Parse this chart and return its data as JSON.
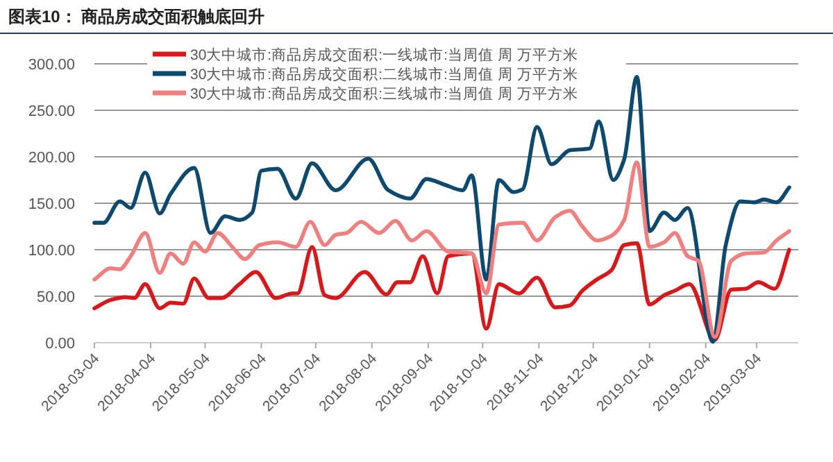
{
  "chart_data": {
    "type": "line",
    "title": "图表10：  商品房成交面积触底回升",
    "xlim": [
      "2018-03-04",
      "2019-03-27"
    ],
    "xticks": [
      "2018-03-04",
      "2018-04-04",
      "2018-05-04",
      "2018-06-04",
      "2018-07-04",
      "2018-08-04",
      "2018-09-04",
      "2018-10-04",
      "2018-11-04",
      "2018-12-04",
      "2019-01-04",
      "2019-02-04",
      "2019-03-04"
    ],
    "ylim": [
      0,
      300
    ],
    "yticks": [
      {
        "value": 0,
        "label": "0.00"
      },
      {
        "value": 50,
        "label": "50.00"
      },
      {
        "value": 100,
        "label": "100.00"
      },
      {
        "value": 150,
        "label": "150.00"
      },
      {
        "value": 200,
        "label": "200.00"
      },
      {
        "value": 250,
        "label": "250.00"
      },
      {
        "value": 300,
        "label": "300.00"
      }
    ],
    "grid": "y",
    "legend": "top",
    "marker": "none",
    "line_style": "solid",
    "series": [
      {
        "name": "30大中城市:商品房成交面积:一线城市:当周值 周  万平方米",
        "color": "#d7191c",
        "x": [
          "2018-03-04",
          "2018-03-13",
          "2018-03-21",
          "2018-03-26",
          "2018-04-01",
          "2018-04-09",
          "2018-04-15",
          "2018-04-22",
          "2018-04-28",
          "2018-05-06",
          "2018-05-13",
          "2018-05-23",
          "2018-06-01",
          "2018-06-12",
          "2018-06-21",
          "2018-06-24",
          "2018-07-02",
          "2018-07-09",
          "2018-07-15",
          "2018-07-31",
          "2018-08-12",
          "2018-08-18",
          "2018-08-25",
          "2018-09-01",
          "2018-09-09",
          "2018-09-15",
          "2018-09-28",
          "2018-10-06",
          "2018-10-13",
          "2018-10-24",
          "2018-11-03",
          "2018-11-13",
          "2018-11-21",
          "2018-11-28",
          "2018-12-06",
          "2018-12-14",
          "2018-12-21",
          "2018-12-28",
          "2019-01-04",
          "2019-01-12",
          "2019-01-18",
          "2019-01-26",
          "2019-02-09",
          "2019-02-18",
          "2019-02-26",
          "2019-03-05",
          "2019-03-14",
          "2019-03-22"
        ],
        "values": [
          37,
          46,
          49,
          48,
          63,
          37,
          43,
          42,
          69,
          48,
          48,
          63,
          76,
          48,
          53,
          53,
          103,
          51,
          48,
          76,
          52,
          65,
          65,
          93,
          53,
          93,
          96,
          15,
          63,
          53,
          70,
          38,
          40,
          56,
          68,
          78,
          105,
          107,
          41,
          51,
          56,
          63,
          3,
          57,
          58,
          65,
          58,
          100
        ]
      },
      {
        "name": "30大中城市:商品房成交面积:二线城市:当周值 周  万平方米",
        "color": "#0e4a6e",
        "x": [
          "2018-03-04",
          "2018-03-09",
          "2018-03-18",
          "2018-03-24",
          "2018-04-01",
          "2018-04-09",
          "2018-04-15",
          "2018-04-28",
          "2018-05-07",
          "2018-05-15",
          "2018-05-23",
          "2018-05-30",
          "2018-06-04",
          "2018-06-13",
          "2018-06-23",
          "2018-07-02",
          "2018-07-15",
          "2018-08-02",
          "2018-08-13",
          "2018-08-25",
          "2018-09-03",
          "2018-09-13",
          "2018-09-23",
          "2018-09-28",
          "2018-10-06",
          "2018-10-13",
          "2018-10-21",
          "2018-10-26",
          "2018-11-03",
          "2018-11-11",
          "2018-11-21",
          "2018-12-02",
          "2018-12-07",
          "2018-12-15",
          "2018-12-21",
          "2018-12-28",
          "2019-01-04",
          "2019-01-12",
          "2019-01-18",
          "2019-01-25",
          "2019-02-08",
          "2019-02-15",
          "2019-02-23",
          "2019-03-03",
          "2019-03-08",
          "2019-03-15",
          "2019-03-22"
        ],
        "values": [
          129,
          129,
          152,
          145,
          183,
          139,
          160,
          188,
          118,
          136,
          132,
          140,
          185,
          187,
          155,
          193,
          164,
          198,
          164,
          155,
          176,
          170,
          164,
          180,
          68,
          175,
          162,
          165,
          232,
          192,
          207,
          209,
          238,
          175,
          197,
          286,
          120,
          140,
          132,
          145,
          1,
          105,
          152,
          151,
          154,
          151,
          167
        ]
      },
      {
        "name": "30大中城市:商品房成交面积:三线城市:当周值 周  万平方米",
        "color": "#f08080",
        "x": [
          "2018-03-04",
          "2018-03-13",
          "2018-03-18",
          "2018-03-24",
          "2018-04-01",
          "2018-04-09",
          "2018-04-15",
          "2018-04-22",
          "2018-04-28",
          "2018-05-04",
          "2018-05-11",
          "2018-05-19",
          "2018-05-26",
          "2018-06-03",
          "2018-06-13",
          "2018-06-23",
          "2018-07-01",
          "2018-07-09",
          "2018-07-15",
          "2018-07-21",
          "2018-07-29",
          "2018-08-08",
          "2018-08-17",
          "2018-08-26",
          "2018-09-03",
          "2018-09-15",
          "2018-09-28",
          "2018-10-06",
          "2018-10-13",
          "2018-10-26",
          "2018-11-03",
          "2018-11-13",
          "2018-11-21",
          "2018-11-28",
          "2018-12-06",
          "2018-12-14",
          "2018-12-21",
          "2018-12-28",
          "2019-01-04",
          "2019-01-12",
          "2019-01-18",
          "2019-01-25",
          "2019-01-31",
          "2019-02-09",
          "2019-02-18",
          "2019-02-26",
          "2019-03-08",
          "2019-03-15",
          "2019-03-22"
        ],
        "values": [
          68,
          80,
          79,
          93,
          118,
          75,
          96,
          85,
          108,
          98,
          118,
          103,
          90,
          105,
          108,
          103,
          130,
          105,
          116,
          118,
          130,
          118,
          131,
          110,
          120,
          98,
          96,
          53,
          127,
          129,
          110,
          135,
          142,
          125,
          110,
          115,
          132,
          194,
          103,
          108,
          118,
          93,
          88,
          6,
          88,
          96,
          97,
          110,
          120
        ]
      }
    ]
  }
}
